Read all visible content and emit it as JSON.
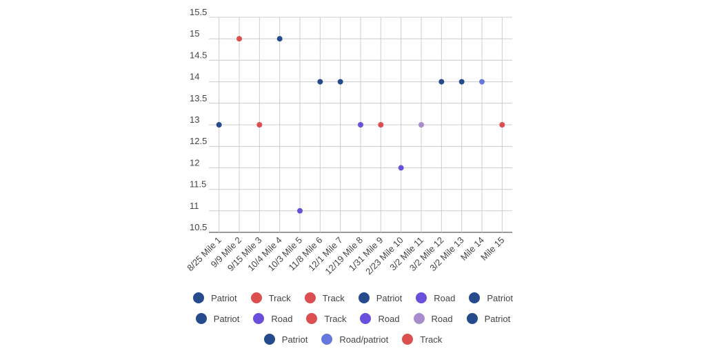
{
  "chart_data": {
    "type": "scatter",
    "title": "",
    "xlabel": "",
    "ylabel": "",
    "ylim": [
      10.5,
      15.5
    ],
    "yticks": [
      "10.5",
      "11",
      "11.5",
      "12",
      "12.5",
      "13",
      "13.5",
      "14",
      "14.5",
      "15",
      "15.5"
    ],
    "grid": true,
    "legend_position": "bottom",
    "categories": [
      "8/25 Mile 1",
      "9/9 Mile 2",
      "9/15 Mile 3",
      "10/4 Mile 4",
      "10/3 Mile 5",
      "11/8 Mile 6",
      "12/1 Mile 7",
      "12/19 Mile 8",
      "1/31 Mile 9",
      "2/23 Mile 10",
      "3/2 Mile 11",
      "3/2 Mile 12",
      "3/2 Mile 13",
      "Mile 14",
      "Mile 15"
    ],
    "series": [
      {
        "name": "Patriot",
        "color": "#264b8c",
        "x": "8/25 Mile 1",
        "value": 13
      },
      {
        "name": "Track",
        "color": "#db4f51",
        "x": "9/9 Mile 2",
        "value": 15
      },
      {
        "name": "Track",
        "color": "#db4f51",
        "x": "9/15 Mile 3",
        "value": 13
      },
      {
        "name": "Patriot",
        "color": "#264b8c",
        "x": "10/4 Mile 4",
        "value": 15
      },
      {
        "name": "Road",
        "color": "#6a4fdc",
        "x": "10/3 Mile 5",
        "value": 11
      },
      {
        "name": "Patriot",
        "color": "#264b8c",
        "x": "11/8 Mile 6",
        "value": 14
      },
      {
        "name": "Patriot",
        "color": "#264b8c",
        "x": "12/1 Mile 7",
        "value": 14
      },
      {
        "name": "Road",
        "color": "#6a4fdc",
        "x": "12/19 Mile 8",
        "value": 13
      },
      {
        "name": "Track",
        "color": "#db4f51",
        "x": "1/31 Mile 9",
        "value": 13
      },
      {
        "name": "Road",
        "color": "#6a4fdc",
        "x": "2/23 Mile 10",
        "value": 12
      },
      {
        "name": "Road",
        "color": "#a98ccb",
        "x": "3/2 Mile 11",
        "value": 13
      },
      {
        "name": "Patriot",
        "color": "#264b8c",
        "x": "3/2 Mile 12",
        "value": 14
      },
      {
        "name": "Patriot",
        "color": "#264b8c",
        "x": "3/2 Mile 13",
        "value": 14
      },
      {
        "name": "Road/patriot",
        "color": "#6677dd",
        "x": "Mile 14",
        "value": 14
      },
      {
        "name": "Track",
        "color": "#db4f51",
        "x": "Mile 15",
        "value": 13
      }
    ]
  }
}
